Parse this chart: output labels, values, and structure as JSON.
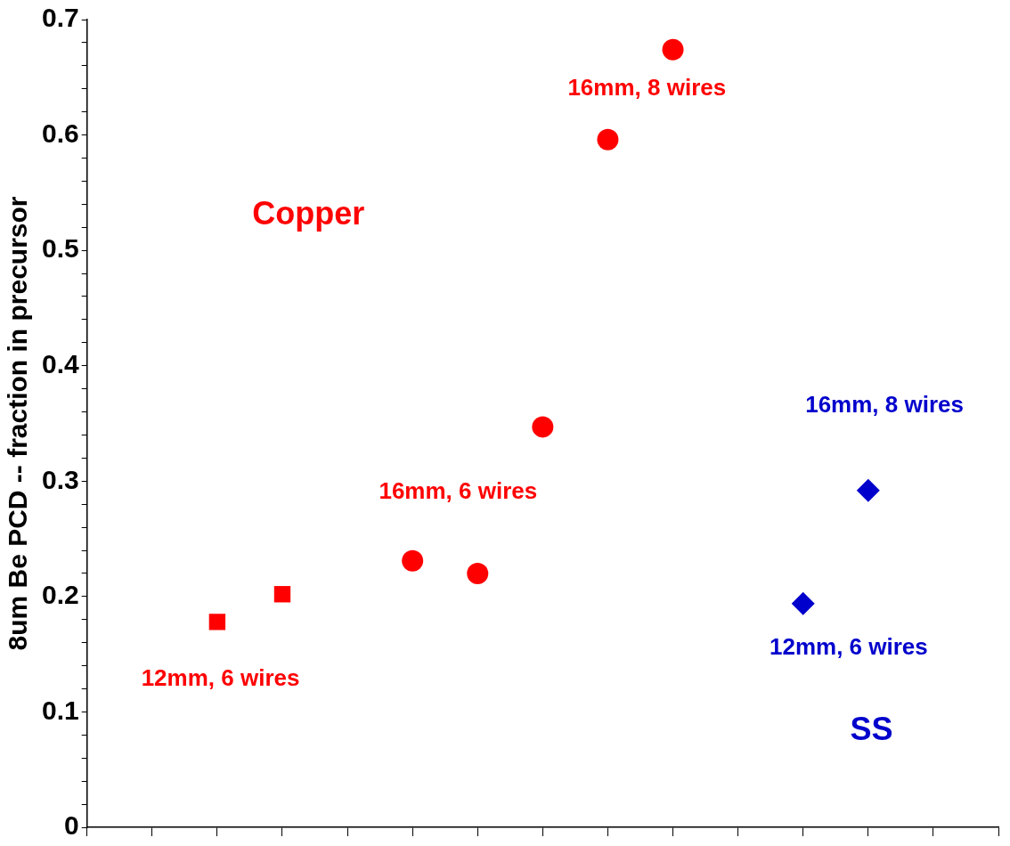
{
  "chart_data": {
    "type": "scatter",
    "ylabel": "8um Be PCD -- fraction in precursor",
    "categories": [
      null,
      null,
      null,
      null,
      null,
      null,
      null,
      null,
      null,
      null,
      null,
      null,
      null,
      null,
      null
    ],
    "series": [
      {
        "color": "#ff0000",
        "marker": "square",
        "values": [
          null,
          null,
          0.178,
          0.202,
          null,
          null,
          null,
          null,
          null,
          null,
          null,
          null,
          null,
          null,
          null
        ]
      },
      {
        "color": "#ff0000",
        "marker": "circle",
        "values": [
          null,
          null,
          null,
          null,
          null,
          0.231,
          0.22,
          0.347,
          0.596,
          0.674,
          null,
          null,
          null,
          null,
          null
        ]
      },
      {
        "color": "#0000cc",
        "marker": "diamond",
        "values": [
          null,
          null,
          null,
          null,
          null,
          null,
          null,
          null,
          null,
          null,
          null,
          0.194,
          0.292,
          null,
          null
        ]
      }
    ],
    "ylim": [
      0,
      0.7
    ],
    "yticks": [
      0,
      {
        "value": 0.02,
        "label": null
      },
      {
        "value": 0.04,
        "label": null
      },
      {
        "value": 0.06,
        "label": null
      },
      {
        "value": 0.08,
        "label": null
      },
      0.1,
      {
        "value": 0.12,
        "label": null
      },
      {
        "value": 0.14,
        "label": null
      },
      {
        "value": 0.16,
        "label": null
      },
      {
        "value": 0.18,
        "label": null
      },
      0.2,
      {
        "value": 0.22,
        "label": null
      },
      {
        "value": 0.24,
        "label": null
      },
      {
        "value": 0.26,
        "label": null
      },
      {
        "value": 0.28,
        "label": null
      },
      0.3,
      {
        "value": 0.32,
        "label": null
      },
      {
        "value": 0.34,
        "label": null
      },
      {
        "value": 0.36,
        "label": null
      },
      {
        "value": 0.38,
        "label": null
      },
      0.4,
      {
        "value": 0.42,
        "label": null
      },
      {
        "value": 0.44,
        "label": null
      },
      {
        "value": 0.46,
        "label": null
      },
      {
        "value": 0.48,
        "label": null
      },
      0.5,
      {
        "value": 0.52,
        "label": null
      },
      {
        "value": 0.54,
        "label": null
      },
      {
        "value": 0.56,
        "label": null
      },
      {
        "value": 0.58,
        "label": null
      },
      0.6,
      {
        "value": 0.62,
        "label": null
      },
      {
        "value": 0.64,
        "label": null
      },
      {
        "value": 0.66,
        "label": null
      },
      {
        "value": 0.68,
        "label": null
      },
      0.7
    ],
    "tick_labels": "y",
    "grid": false,
    "legend": false,
    "annotations": [
      "16mm, 8 wires",
      "Copper",
      "16mm, 8 wires",
      "16mm, 6 wires",
      "12mm, 6 wires",
      "12mm, 6 wires",
      "SS"
    ]
  }
}
